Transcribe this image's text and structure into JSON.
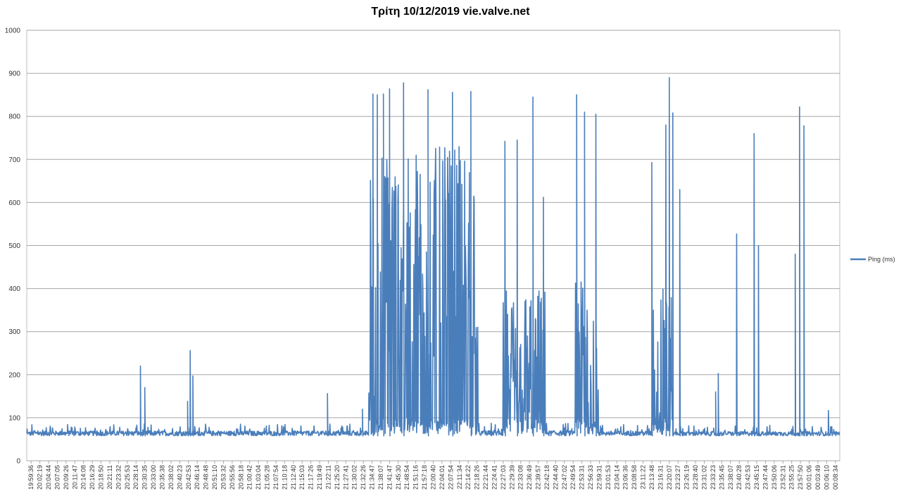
{
  "chart_data": {
    "type": "line",
    "title": "Τρίτη 10/12/2019 vie.valve.net",
    "xlabel": "",
    "ylabel": "",
    "ylim": [
      0,
      1000
    ],
    "yticks": [
      0,
      100,
      200,
      300,
      400,
      500,
      600,
      700,
      800,
      900,
      1000
    ],
    "grid": true,
    "legend_position": "right",
    "series_color": "#4a7ebb",
    "x_tick_labels": [
      "19:59:36",
      "20:02:19",
      "20:04:44",
      "20:07:05",
      "20:09:26",
      "20:11:47",
      "20:14:08",
      "20:16:29",
      "20:18:50",
      "20:21:11",
      "20:23:32",
      "20:25:53",
      "20:28:14",
      "20:30:35",
      "20:33:00",
      "20:35:38",
      "20:38:02",
      "20:40:23",
      "20:42:53",
      "20:46:14",
      "20:48:48",
      "20:51:10",
      "20:53:32",
      "20:55:56",
      "20:58:18",
      "21:00:42",
      "21:03:04",
      "21:05:28",
      "21:07:54",
      "21:10:18",
      "21:12:40",
      "21:15:03",
      "21:17:26",
      "21:19:49",
      "21:22:11",
      "21:25:20",
      "21:27:41",
      "21:30:02",
      "21:32:26",
      "21:34:47",
      "21:38:07",
      "21:41:47",
      "21:45:30",
      "21:48:54",
      "21:51:16",
      "21:57:18",
      "22:00:40",
      "22:04:01",
      "22:07:54",
      "22:11:34",
      "22:14:22",
      "22:18:26",
      "22:21:44",
      "22:24:41",
      "22:27:03",
      "22:29:39",
      "22:33:08",
      "22:36:49",
      "22:39:57",
      "22:42:18",
      "22:44:40",
      "22:47:02",
      "22:49:54",
      "22:53:31",
      "22:56:33",
      "22:59:31",
      "23:01:53",
      "23:04:14",
      "23:06:36",
      "23:08:58",
      "23:11:22",
      "23:13:48",
      "23:16:31",
      "23:20:07",
      "23:23:27",
      "23:26:19",
      "23:28:40",
      "23:31:02",
      "23:33:23",
      "23:35:45",
      "23:38:07",
      "23:40:28",
      "23:42:53",
      "23:45:15",
      "23:47:44",
      "23:50:06",
      "23:52:31",
      "23:55:25",
      "23:57:50",
      "00:01:06",
      "00:03:49",
      "00:06:10",
      "00:08:34"
    ],
    "segments": [
      {
        "from": 0,
        "to": 38.6,
        "base": 58,
        "noise": 28
      },
      {
        "from": 38.6,
        "to": 39.4,
        "base": 300,
        "noise": 550
      },
      {
        "from": 39.4,
        "to": 51.1,
        "base": 380,
        "noise": 500
      },
      {
        "from": 51.1,
        "to": 54.0,
        "base": 58,
        "noise": 30
      },
      {
        "from": 54.0,
        "to": 58.8,
        "base": 180,
        "noise": 320
      },
      {
        "from": 58.8,
        "to": 62.2,
        "base": 58,
        "noise": 30
      },
      {
        "from": 62.2,
        "to": 64.9,
        "base": 180,
        "noise": 350
      },
      {
        "from": 64.9,
        "to": 71.0,
        "base": 58,
        "noise": 28
      },
      {
        "from": 71.0,
        "to": 73.4,
        "base": 200,
        "noise": 300
      },
      {
        "from": 73.4,
        "to": 92.9,
        "base": 58,
        "noise": 25
      }
    ],
    "spikes": [
      {
        "x": 12.5,
        "y": 220
      },
      {
        "x": 13.0,
        "y": 170
      },
      {
        "x": 17.9,
        "y": 138
      },
      {
        "x": 18.2,
        "y": 256
      },
      {
        "x": 18.5,
        "y": 197
      },
      {
        "x": 33.9,
        "y": 156
      },
      {
        "x": 37.9,
        "y": 120
      },
      {
        "x": 39.1,
        "y": 852
      },
      {
        "x": 39.6,
        "y": 850
      },
      {
        "x": 40.3,
        "y": 852
      },
      {
        "x": 41.0,
        "y": 864
      },
      {
        "x": 42.6,
        "y": 878
      },
      {
        "x": 45.4,
        "y": 862
      },
      {
        "x": 48.2,
        "y": 856
      },
      {
        "x": 50.3,
        "y": 858
      },
      {
        "x": 54.2,
        "y": 742
      },
      {
        "x": 55.6,
        "y": 745
      },
      {
        "x": 57.4,
        "y": 845
      },
      {
        "x": 58.6,
        "y": 612
      },
      {
        "x": 62.4,
        "y": 850
      },
      {
        "x": 63.3,
        "y": 810
      },
      {
        "x": 64.6,
        "y": 805
      },
      {
        "x": 71.0,
        "y": 693
      },
      {
        "x": 73.0,
        "y": 890
      },
      {
        "x": 73.4,
        "y": 808
      },
      {
        "x": 72.6,
        "y": 780
      },
      {
        "x": 74.2,
        "y": 630
      },
      {
        "x": 78.3,
        "y": 160
      },
      {
        "x": 78.6,
        "y": 203
      },
      {
        "x": 80.7,
        "y": 527
      },
      {
        "x": 82.7,
        "y": 760
      },
      {
        "x": 83.2,
        "y": 500
      },
      {
        "x": 87.4,
        "y": 480
      },
      {
        "x": 87.9,
        "y": 822
      },
      {
        "x": 88.4,
        "y": 778
      },
      {
        "x": 91.2,
        "y": 117
      }
    ],
    "series": [
      {
        "name": "Ping (ms)"
      }
    ]
  }
}
